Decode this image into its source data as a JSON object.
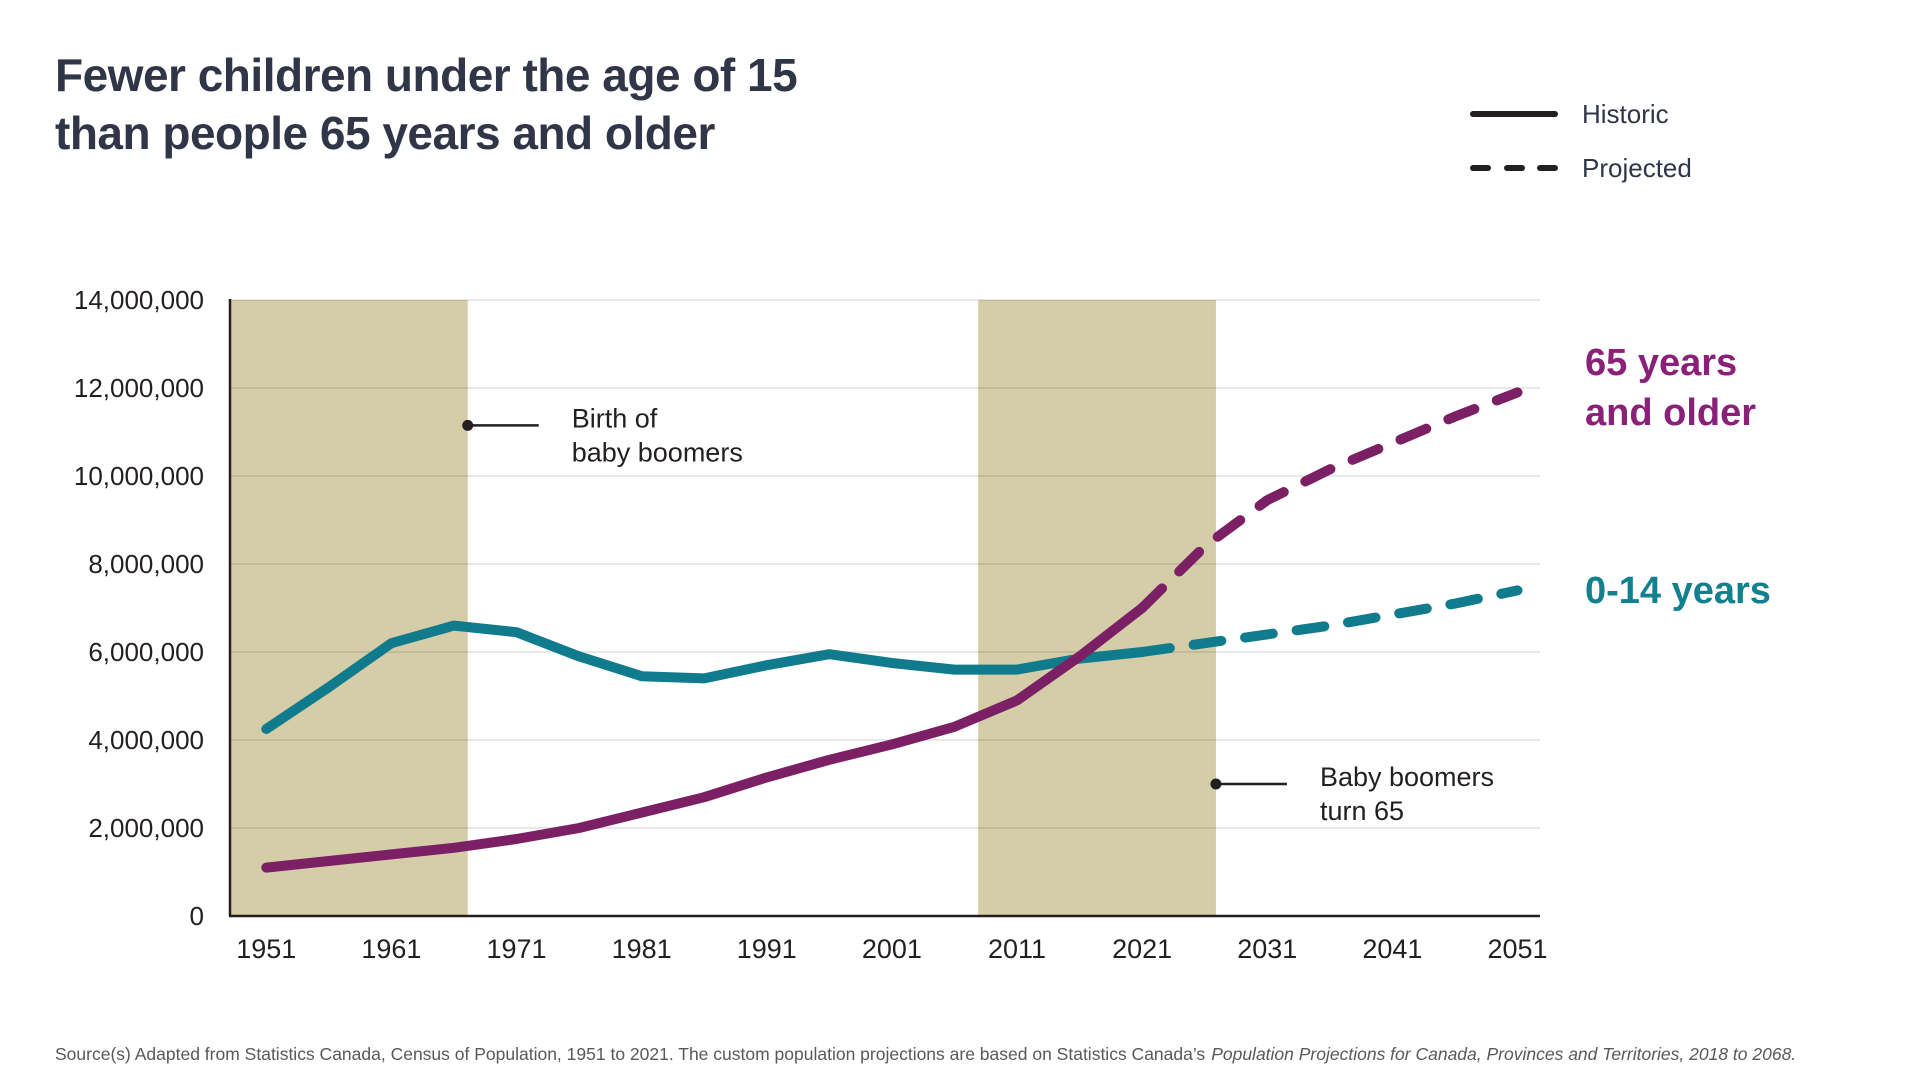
{
  "header": {
    "title_line1": "Fewer children under the age of 15",
    "title_line2": "than people 65 years and older"
  },
  "legend": {
    "historic_label": "Historic",
    "projected_label": "Projected"
  },
  "series_labels": {
    "older_line1": "65 years",
    "older_line2": "and older",
    "younger": "0-14 years"
  },
  "source": {
    "regular": "Source(s) Adapted from Statistics Canada, Census of Population, 1951 to 2021. The custom population projections are based on Statistics Canada’s",
    "italic": "Population Projections for Canada, Provinces and Territories, 2018 to 2068."
  },
  "colors": {
    "title_text": "#303648",
    "annotation_text": "#2e3447",
    "tick_text": "#231f20",
    "axis": "#231f20",
    "gridline": "rgba(0,0,0,0.12)",
    "band": "#d5cda8",
    "teal": "#0f7b8c",
    "purple": "#7c2066",
    "teal_label": "#13808f",
    "purple_label": "#8a2078",
    "source_text": "#58595b"
  },
  "chart_data": {
    "type": "line",
    "title": "Fewer children under the age of 15 than people 65 years and older",
    "xlabel": "",
    "ylabel": "",
    "grid": true,
    "legend_position": "top-right",
    "x_domain": [
      1948.1,
      2052.8
    ],
    "ylim": [
      0,
      14000000
    ],
    "y_ticks": [
      {
        "value": 14000000,
        "label": "14,000,000"
      },
      {
        "value": 12000000,
        "label": "12,000,000"
      },
      {
        "value": 10000000,
        "label": "10,000,000"
      },
      {
        "value": 8000000,
        "label": "8,000,000"
      },
      {
        "value": 6000000,
        "label": "6,000,000"
      },
      {
        "value": 4000000,
        "label": "4,000,000"
      },
      {
        "value": 2000000,
        "label": "2,000,000"
      },
      {
        "value": 0,
        "label": "0"
      }
    ],
    "x_ticks": [
      {
        "value": 1951,
        "label": "1951"
      },
      {
        "value": 1961,
        "label": "1961"
      },
      {
        "value": 1971,
        "label": "1971"
      },
      {
        "value": 1981,
        "label": "1981"
      },
      {
        "value": 1991,
        "label": "1991"
      },
      {
        "value": 2001,
        "label": "2001"
      },
      {
        "value": 2011,
        "label": "2011"
      },
      {
        "value": 2021,
        "label": "2021"
      },
      {
        "value": 2031,
        "label": "2031"
      },
      {
        "value": 2041,
        "label": "2041"
      },
      {
        "value": 2051,
        "label": "2051"
      }
    ],
    "bands": [
      {
        "name": "birth-of-baby-boomers",
        "from": 1948.1,
        "to": 1967.1
      },
      {
        "name": "baby-boomers-turn-65",
        "from": 2007.9,
        "to": 2026.9
      }
    ],
    "series": [
      {
        "name": "0-14 years",
        "color": "#0f7b8c",
        "historic": {
          "x": [
            1951,
            1956,
            1961,
            1966,
            1971,
            1976,
            1981,
            1986,
            1991,
            1996,
            2001,
            2006,
            2011,
            2016,
            2021
          ],
          "y": [
            4250000,
            5200000,
            6200000,
            6600000,
            6450000,
            5900000,
            5450000,
            5400000,
            5700000,
            5950000,
            5750000,
            5600000,
            5600000,
            5850000,
            6000000
          ]
        },
        "projected": {
          "x": [
            2021,
            2026,
            2031,
            2036,
            2041,
            2046,
            2051
          ],
          "y": [
            6000000,
            6200000,
            6400000,
            6600000,
            6850000,
            7100000,
            7400000
          ]
        }
      },
      {
        "name": "65 years and older",
        "color": "#7c2066",
        "historic": {
          "x": [
            1951,
            1956,
            1961,
            1966,
            1971,
            1976,
            1981,
            1986,
            1991,
            1996,
            2001,
            2006,
            2011,
            2016,
            2021
          ],
          "y": [
            1100000,
            1250000,
            1400000,
            1550000,
            1750000,
            2000000,
            2350000,
            2700000,
            3150000,
            3550000,
            3900000,
            4300000,
            4900000,
            5900000,
            7000000
          ]
        },
        "projected": {
          "x": [
            2021,
            2026,
            2031,
            2036,
            2041,
            2046,
            2051
          ],
          "y": [
            7000000,
            8400000,
            9450000,
            10150000,
            10750000,
            11350000,
            11900000
          ]
        }
      }
    ],
    "annotations": [
      {
        "id": "birth-of-baby-boomers",
        "lines": [
          "Birth of",
          "baby boomers"
        ],
        "anchor_year": 1967.1,
        "anchor_value": 11150000
      },
      {
        "id": "baby-boomers-turn-65",
        "lines": [
          "Baby boomers",
          "turn 65"
        ],
        "anchor_year": 2026.9,
        "anchor_value": 3000000
      }
    ]
  }
}
